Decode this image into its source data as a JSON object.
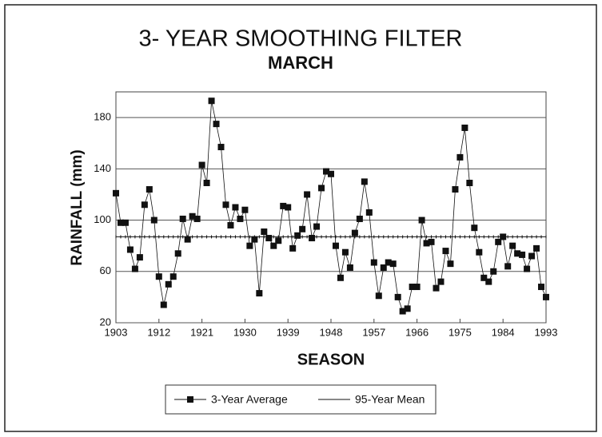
{
  "chart_data": {
    "type": "line",
    "title": "3- YEAR SMOOTHING FILTER",
    "subtitle": "MARCH",
    "y_label": "RAINFALL (mm)",
    "x_label": "SEASON",
    "x": [
      1903,
      1904,
      1905,
      1906,
      1907,
      1908,
      1909,
      1910,
      1911,
      1912,
      1913,
      1914,
      1915,
      1916,
      1917,
      1918,
      1919,
      1920,
      1921,
      1922,
      1923,
      1924,
      1925,
      1926,
      1927,
      1928,
      1929,
      1930,
      1931,
      1932,
      1933,
      1934,
      1935,
      1936,
      1937,
      1938,
      1939,
      1940,
      1941,
      1942,
      1943,
      1944,
      1945,
      1946,
      1947,
      1948,
      1949,
      1950,
      1951,
      1952,
      1953,
      1954,
      1955,
      1956,
      1957,
      1958,
      1959,
      1960,
      1961,
      1962,
      1963,
      1964,
      1965,
      1966,
      1967,
      1968,
      1969,
      1970,
      1971,
      1972,
      1973,
      1974,
      1975,
      1976,
      1977,
      1978,
      1979,
      1980,
      1981,
      1982,
      1983,
      1984,
      1985,
      1986,
      1987,
      1988,
      1989,
      1990,
      1991,
      1992,
      1993
    ],
    "series": [
      {
        "name": "3-Year Average",
        "color": "#111111",
        "values": [
          121,
          98,
          98,
          77,
          62,
          71,
          112,
          124,
          100,
          56,
          34,
          50,
          56,
          74,
          101,
          85,
          103,
          101,
          143,
          129,
          193,
          175,
          157,
          112,
          96,
          110,
          101,
          108,
          80,
          85,
          43,
          91,
          86,
          80,
          84,
          111,
          110,
          78,
          88,
          93,
          120,
          86,
          95,
          125,
          138,
          136,
          80,
          55,
          75,
          63,
          90,
          101,
          130,
          106,
          67,
          41,
          63,
          67,
          66,
          40,
          29,
          31,
          48,
          48,
          100,
          82,
          83,
          47,
          52,
          76,
          66,
          124,
          149,
          172,
          129,
          94,
          75,
          55,
          52,
          60,
          83,
          87,
          64,
          80,
          74,
          73,
          62,
          72,
          78,
          48,
          40
        ]
      },
      {
        "name": "95-Year Mean",
        "color": "#111111",
        "values": [
          87,
          87,
          87,
          87,
          87,
          87,
          87,
          87,
          87,
          87,
          87,
          87,
          87,
          87,
          87,
          87,
          87,
          87,
          87,
          87,
          87,
          87,
          87,
          87,
          87,
          87,
          87,
          87,
          87,
          87,
          87,
          87,
          87,
          87,
          87,
          87,
          87,
          87,
          87,
          87,
          87,
          87,
          87,
          87,
          87,
          87,
          87,
          87,
          87,
          87,
          87,
          87,
          87,
          87,
          87,
          87,
          87,
          87,
          87,
          87,
          87,
          87,
          87,
          87,
          87,
          87,
          87,
          87,
          87,
          87,
          87,
          87,
          87,
          87,
          87,
          87,
          87,
          87,
          87,
          87,
          87,
          87,
          87,
          87,
          87,
          87,
          87,
          87,
          87,
          87,
          87
        ]
      }
    ],
    "xlim": [
      1903,
      1993
    ],
    "xticks": [
      1903,
      1912,
      1921,
      1930,
      1939,
      1948,
      1957,
      1966,
      1975,
      1984,
      1993
    ],
    "ylim": [
      20,
      200
    ],
    "yticks": [
      20,
      60,
      100,
      140,
      180
    ],
    "grid": true,
    "legend": "bottom"
  }
}
